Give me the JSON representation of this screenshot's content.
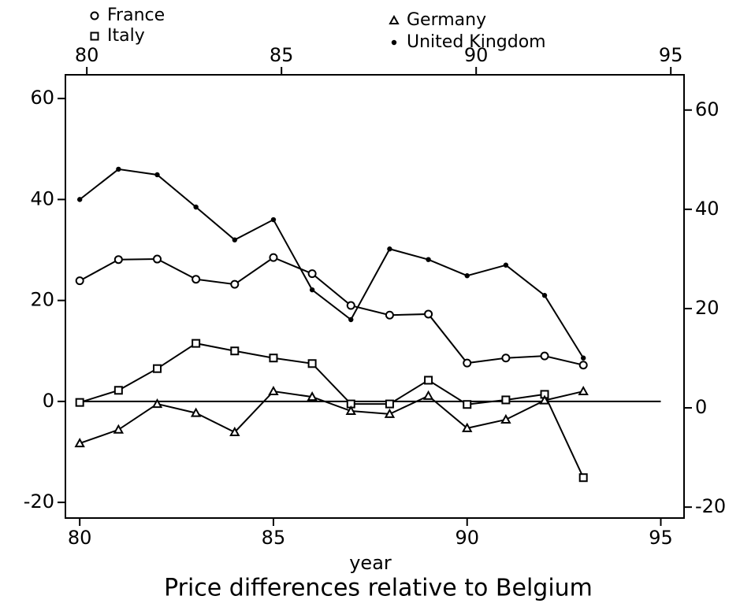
{
  "chart_data": {
    "type": "line",
    "title": "Price differences relative to Belgium",
    "x_label": "year",
    "x": [
      80,
      81,
      82,
      83,
      84,
      85,
      86,
      87,
      88,
      89,
      90,
      91,
      92,
      93
    ],
    "series": [
      {
        "name": "France",
        "color": "#000000",
        "marker": "circle",
        "values": [
          23.9,
          28.1,
          28.2,
          24.2,
          23.2,
          28.5,
          25.3,
          19,
          17.1,
          17.3,
          7.6,
          8.6,
          9,
          7.2
        ]
      },
      {
        "name": "Italy",
        "color": "#000000",
        "marker": "square",
        "values": [
          -0.2,
          2.2,
          6.5,
          11.5,
          10,
          8.6,
          7.5,
          -0.5,
          -0.5,
          4.2,
          -0.6,
          0.3,
          1.4,
          -15.1
        ]
      },
      {
        "name": "Germany",
        "color": "#000000",
        "marker": "triangle",
        "values": [
          -8.3,
          -5.6,
          -0.5,
          -2.3,
          -6.1,
          2,
          0.9,
          -1.9,
          -2.5,
          1.1,
          -5.3,
          -3.6,
          0.2,
          2
        ]
      },
      {
        "name": "United Kingdom",
        "color": "#000000",
        "marker": "dot",
        "values": [
          40,
          46,
          44.9,
          38.5,
          32,
          36,
          22.1,
          16.2,
          30.2,
          28.1,
          24.9,
          27,
          21,
          8.6
        ]
      }
    ],
    "reference_line": 0,
    "xlim": [
      79.63,
      95.6
    ],
    "xticks": [
      80,
      85,
      90,
      95
    ],
    "x2lim": [
      79.45,
      95.34
    ],
    "x2ticks": [
      80,
      85,
      90,
      95
    ],
    "ylim": [
      -23.1,
      64.7
    ],
    "yticks": [
      -20,
      0,
      20,
      40,
      60
    ],
    "y2lim": [
      -22.2,
      67.1
    ],
    "y2ticks": [
      -20,
      0,
      20,
      40,
      60
    ]
  }
}
